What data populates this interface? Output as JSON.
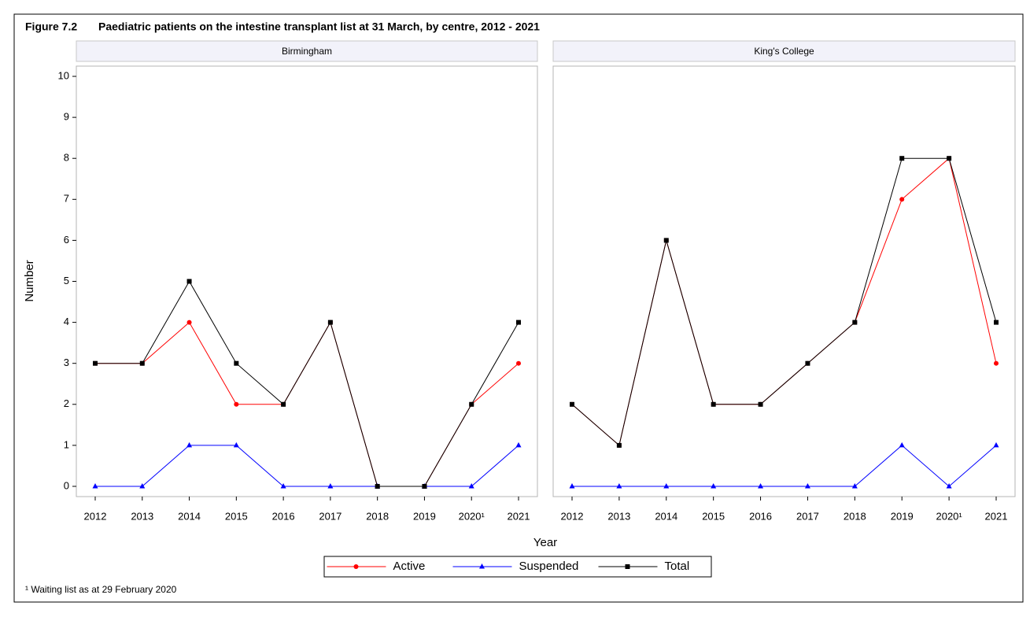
{
  "figure": {
    "label": "Figure 7.2",
    "title": "Paediatric patients on the intestine transplant list at 31 March, by centre, 2012 - 2021",
    "x_label": "Year",
    "y_label": "Number",
    "footnote": "¹ Waiting list as at 29 February 2020",
    "legend_position": "bottom"
  },
  "chart_data": [
    {
      "type": "line",
      "title": "Birmingham",
      "categories": [
        "2012",
        "2013",
        "2014",
        "2015",
        "2016",
        "2017",
        "2018",
        "2019",
        "2020¹",
        "2021"
      ],
      "series": [
        {
          "name": "Active",
          "color": "#ff0000",
          "marker": "circle",
          "values": [
            3,
            3,
            4,
            2,
            2,
            4,
            0,
            0,
            2,
            3
          ]
        },
        {
          "name": "Suspended",
          "color": "#0000ff",
          "marker": "triangle",
          "values": [
            0,
            0,
            1,
            1,
            0,
            0,
            0,
            0,
            0,
            1
          ]
        },
        {
          "name": "Total",
          "color": "#000000",
          "marker": "square",
          "values": [
            3,
            3,
            5,
            3,
            2,
            4,
            0,
            0,
            2,
            4
          ]
        }
      ],
      "ylim": [
        -0.25,
        10.25
      ],
      "yticks": [
        0,
        1,
        2,
        3,
        4,
        5,
        6,
        7,
        8,
        9,
        10
      ]
    },
    {
      "type": "line",
      "title": "King's College",
      "categories": [
        "2012",
        "2013",
        "2014",
        "2015",
        "2016",
        "2017",
        "2018",
        "2019",
        "2020¹",
        "2021"
      ],
      "series": [
        {
          "name": "Active",
          "color": "#ff0000",
          "marker": "circle",
          "values": [
            2,
            1,
            6,
            2,
            2,
            3,
            4,
            7,
            8,
            3
          ]
        },
        {
          "name": "Suspended",
          "color": "#0000ff",
          "marker": "triangle",
          "values": [
            0,
            0,
            0,
            0,
            0,
            0,
            0,
            1,
            0,
            1
          ]
        },
        {
          "name": "Total",
          "color": "#000000",
          "marker": "square",
          "values": [
            2,
            1,
            6,
            2,
            2,
            3,
            4,
            8,
            8,
            4
          ]
        }
      ],
      "ylim": [
        -0.25,
        10.25
      ]
    }
  ]
}
